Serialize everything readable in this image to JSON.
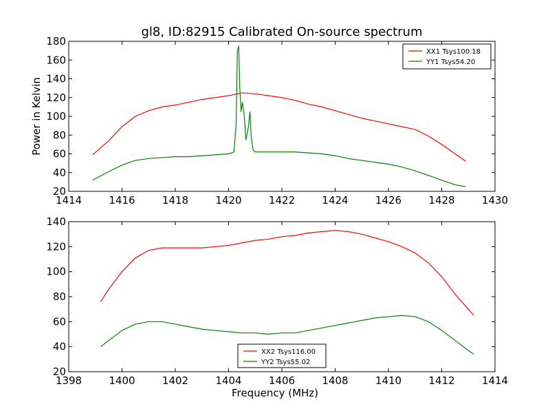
{
  "figure": {
    "title": "gl8, ID:82915 Calibrated On-source spectrum"
  },
  "chart_data": [
    {
      "type": "line",
      "title": "gl8, ID:82915 Calibrated On-source spectrum",
      "xlabel": "",
      "ylabel": "Power in Kelvin",
      "xlim": [
        1414,
        1430
      ],
      "ylim": [
        20,
        180
      ],
      "xticks": [
        1414,
        1416,
        1418,
        1420,
        1422,
        1424,
        1426,
        1428,
        1430
      ],
      "yticks": [
        20,
        40,
        60,
        80,
        100,
        120,
        140,
        160,
        180
      ],
      "legend": "top-right",
      "series": [
        {
          "name": "XX1 Tsys100.18",
          "color": "#ff0000",
          "x": [
            1414.9,
            1415.5,
            1416.0,
            1416.5,
            1417.0,
            1417.5,
            1418.0,
            1418.5,
            1419.0,
            1419.5,
            1420.0,
            1420.5,
            1421.0,
            1421.5,
            1422.0,
            1422.5,
            1423.0,
            1423.5,
            1424.0,
            1424.5,
            1425.0,
            1425.5,
            1426.0,
            1426.5,
            1427.0,
            1427.5,
            1428.0,
            1428.5,
            1428.9
          ],
          "y": [
            59,
            74,
            89,
            100,
            106,
            110,
            112,
            115,
            118,
            120,
            122,
            125,
            124,
            122,
            120,
            117,
            113,
            110,
            106,
            102,
            98,
            95,
            92,
            89,
            86,
            79,
            70,
            60,
            52
          ]
        },
        {
          "name": "YY1 Tsys54.20",
          "color": "#008000",
          "x": [
            1414.9,
            1415.5,
            1416.0,
            1416.5,
            1417.0,
            1417.5,
            1418.0,
            1418.5,
            1419.0,
            1419.5,
            1420.0,
            1420.2,
            1420.28,
            1420.33,
            1420.38,
            1420.42,
            1420.47,
            1420.52,
            1420.58,
            1420.65,
            1420.7,
            1420.75,
            1420.8,
            1420.85,
            1420.92,
            1421.0,
            1421.5,
            1422.0,
            1422.5,
            1423.0,
            1423.5,
            1424.0,
            1424.5,
            1425.0,
            1425.5,
            1426.0,
            1426.5,
            1427.0,
            1427.5,
            1428.0,
            1428.5,
            1428.9
          ],
          "y": [
            32,
            41,
            48,
            53,
            55,
            56,
            57,
            57,
            58,
            59,
            60,
            62,
            90,
            170,
            175,
            130,
            105,
            115,
            103,
            75,
            82,
            90,
            105,
            78,
            64,
            62,
            62,
            62,
            62,
            61,
            60,
            58,
            55,
            53,
            51,
            49,
            46,
            42,
            37,
            32,
            27,
            25
          ]
        }
      ]
    },
    {
      "type": "line",
      "title": "",
      "xlabel": "Frequency (MHz)",
      "ylabel": "",
      "xlim": [
        1398,
        1414
      ],
      "ylim": [
        20,
        140
      ],
      "xticks": [
        1398,
        1400,
        1402,
        1404,
        1406,
        1408,
        1410,
        1412,
        1414
      ],
      "yticks": [
        20,
        40,
        60,
        80,
        100,
        120,
        140
      ],
      "legend": "lower-center",
      "series": [
        {
          "name": "XX2 Tsys116.00",
          "color": "#ff0000",
          "x": [
            1399.2,
            1399.5,
            1400.0,
            1400.5,
            1401.0,
            1401.5,
            1402.0,
            1402.5,
            1403.0,
            1403.5,
            1404.0,
            1404.5,
            1405.0,
            1405.5,
            1406.0,
            1406.5,
            1407.0,
            1407.5,
            1408.0,
            1408.5,
            1409.0,
            1409.5,
            1410.0,
            1410.5,
            1411.0,
            1411.5,
            1412.0,
            1412.5,
            1413.0,
            1413.2
          ],
          "y": [
            76,
            86,
            100,
            111,
            117,
            119,
            119,
            119,
            119,
            120,
            121,
            123,
            125,
            126,
            128,
            129,
            131,
            132,
            133,
            132,
            130,
            127,
            124,
            120,
            115,
            107,
            96,
            82,
            70,
            65
          ]
        },
        {
          "name": "YY2 Tsys55.02",
          "color": "#008000",
          "x": [
            1399.2,
            1399.5,
            1400.0,
            1400.5,
            1401.0,
            1401.5,
            1402.0,
            1402.5,
            1403.0,
            1403.5,
            1404.0,
            1404.5,
            1405.0,
            1405.5,
            1406.0,
            1406.5,
            1407.0,
            1407.5,
            1408.0,
            1408.5,
            1409.0,
            1409.5,
            1410.0,
            1410.5,
            1411.0,
            1411.5,
            1412.0,
            1412.5,
            1413.0,
            1413.2
          ],
          "y": [
            40,
            45,
            53,
            58,
            60,
            60,
            58,
            56,
            54,
            53,
            52,
            51,
            51,
            50,
            51,
            51,
            53,
            55,
            57,
            59,
            61,
            63,
            64,
            65,
            64,
            60,
            53,
            45,
            37,
            34
          ]
        }
      ]
    }
  ]
}
